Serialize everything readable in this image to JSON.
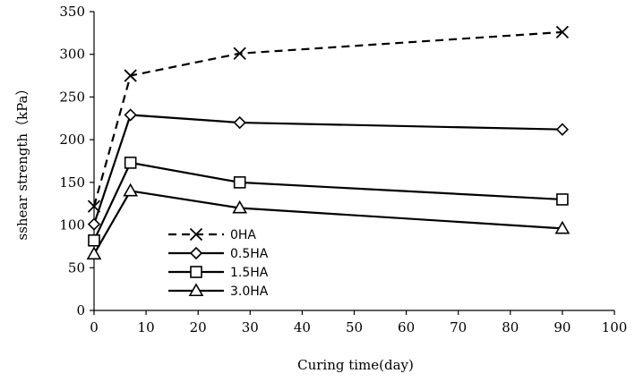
{
  "chart_data": {
    "type": "line",
    "xlabel": "Curing time(day)",
    "ylabel": "sshear strength（kPa）",
    "xlim": [
      0,
      100
    ],
    "ylim": [
      0,
      350
    ],
    "xticks": [
      0,
      10,
      20,
      30,
      40,
      50,
      60,
      70,
      80,
      90,
      100
    ],
    "yticks": [
      0,
      50,
      100,
      150,
      200,
      250,
      300,
      350
    ],
    "grid": false,
    "legend_position": "lower-left",
    "x": [
      0,
      7,
      28,
      90
    ],
    "series": [
      {
        "name": "0HA",
        "values": [
          122,
          275,
          301,
          326
        ],
        "marker": "x",
        "line": "dashed",
        "color": "#000000"
      },
      {
        "name": "0.5HA",
        "values": [
          101,
          229,
          220,
          212
        ],
        "marker": "diamond",
        "line": "solid",
        "color": "#000000"
      },
      {
        "name": "1.5HA",
        "values": [
          82,
          173,
          150,
          130
        ],
        "marker": "square",
        "line": "solid",
        "color": "#000000"
      },
      {
        "name": "3.0HA",
        "values": [
          66,
          140,
          120,
          96
        ],
        "marker": "triangle",
        "line": "solid",
        "color": "#000000"
      }
    ]
  }
}
